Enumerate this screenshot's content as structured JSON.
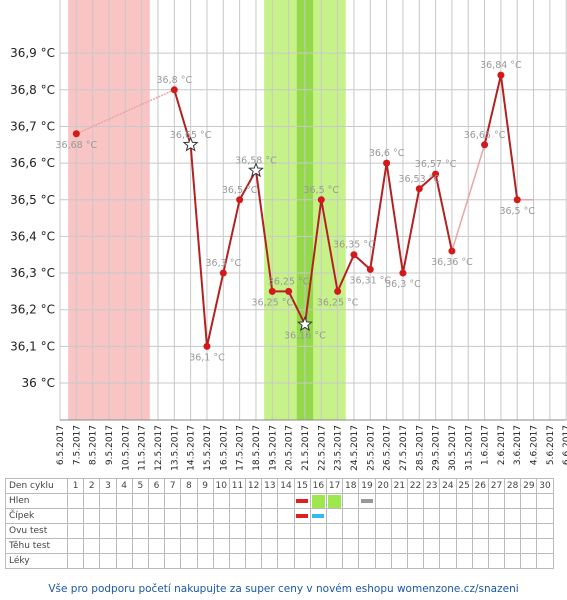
{
  "chart_data": {
    "type": "line",
    "ylabel_ticks": [
      "36 °C",
      "36,1 °C",
      "36,2 °C",
      "36,3 °C",
      "36,4 °C",
      "36,5 °C",
      "36,6 °C",
      "36,7 °C",
      "36,8 °C",
      "36,9 °C"
    ],
    "ylim": [
      35.9,
      37.0
    ],
    "dates": [
      "6.5.2017",
      "7.5.2017",
      "8.5.2017",
      "9.5.2017",
      "10.5.2017",
      "11.5.2017",
      "12.5.2017",
      "13.5.2017",
      "14.5.2017",
      "15.5.2017",
      "16.5.2017",
      "17.5.2017",
      "18.5.2017",
      "19.5.2017",
      "20.5.2017",
      "21.5.2017",
      "22.5.2017",
      "23.5.2017",
      "24.5.2017",
      "25.5.2017",
      "26.5.2017",
      "27.5.2017",
      "28.5.2017",
      "29.5.2017",
      "30.5.2017",
      "31.5.2017",
      "1.6.2017",
      "2.6.2017",
      "3.6.2017",
      "4.6.2017",
      "5.6.2017",
      "6.6.2017"
    ],
    "points": [
      {
        "x": "7.5.2017",
        "y": 36.68,
        "label": "36,68 °C",
        "star": false
      },
      {
        "x": "13.5.2017",
        "y": 36.8,
        "label": "36,8 °C",
        "star": false
      },
      {
        "x": "14.5.2017",
        "y": 36.65,
        "label": "36,65 °C",
        "star": true
      },
      {
        "x": "15.5.2017",
        "y": 36.1,
        "label": "36,1 °C",
        "star": false
      },
      {
        "x": "16.5.2017",
        "y": 36.3,
        "label": "36,3 °C",
        "star": false
      },
      {
        "x": "17.5.2017",
        "y": 36.5,
        "label": "36,5 °C",
        "star": false
      },
      {
        "x": "18.5.2017",
        "y": 36.58,
        "label": "36,58 °C",
        "star": true
      },
      {
        "x": "19.5.2017",
        "y": 36.25,
        "label": "36,25 °C",
        "star": false
      },
      {
        "x": "20.5.2017",
        "y": 36.25,
        "label": "36,25 °C",
        "star": false
      },
      {
        "x": "21.5.2017",
        "y": 36.16,
        "label": "36,16 °C",
        "star": true
      },
      {
        "x": "22.5.2017",
        "y": 36.5,
        "label": "36,5 °C",
        "star": false
      },
      {
        "x": "23.5.2017",
        "y": 36.25,
        "label": "36,25 °C",
        "star": false
      },
      {
        "x": "24.5.2017",
        "y": 36.35,
        "label": "36,35 °C",
        "star": false
      },
      {
        "x": "25.5.2017",
        "y": 36.31,
        "label": "36,31 °C",
        "star": false
      },
      {
        "x": "26.5.2017",
        "y": 36.6,
        "label": "36,6 °C",
        "star": false
      },
      {
        "x": "27.5.2017",
        "y": 36.3,
        "label": "36,3 °C",
        "star": false
      },
      {
        "x": "28.5.2017",
        "y": 36.53,
        "label": "36,53 °C",
        "star": false
      },
      {
        "x": "29.5.2017",
        "y": 36.57,
        "label": "36,57 °C",
        "star": false
      },
      {
        "x": "30.5.2017",
        "y": 36.36,
        "label": "36,36 °C",
        "star": false
      },
      {
        "x": "1.6.2017",
        "y": 36.65,
        "label": "36,65 °C",
        "star": false
      },
      {
        "x": "2.6.2017",
        "y": 36.84,
        "label": "36,84 °C",
        "star": false
      },
      {
        "x": "3.6.2017",
        "y": 36.5,
        "label": "36,5 °C",
        "star": false
      }
    ],
    "bands": [
      {
        "from": "6.5.2017",
        "to": "11.5.2017",
        "color": "#f9c4c4"
      },
      {
        "from": "18.5.2017",
        "to": "23.5.2017",
        "color": "#c7f28a"
      },
      {
        "from": "20.5.2017",
        "to": "21.5.2017",
        "color": "#93d94a"
      }
    ],
    "colors": {
      "line": "#b22222",
      "dot": "#d21a1a",
      "grid": "#c8c8c8",
      "label": "#999999"
    }
  },
  "table": {
    "rows": [
      {
        "label": "Den cyklu"
      },
      {
        "label": "Hlen"
      },
      {
        "label": "Čípek"
      },
      {
        "label": "Ovu test"
      },
      {
        "label": "Těhu test"
      },
      {
        "label": "Léky"
      }
    ],
    "days": [
      "1",
      "2",
      "3",
      "4",
      "5",
      "6",
      "7",
      "8",
      "9",
      "10",
      "11",
      "12",
      "13",
      "14",
      "15",
      "16",
      "17",
      "18",
      "19",
      "20",
      "21",
      "22",
      "23",
      "24",
      "25",
      "26",
      "27",
      "28",
      "29",
      "30"
    ],
    "marks": {
      "hlen": [
        {
          "day": 15,
          "type": "red-bar"
        },
        {
          "day": 16,
          "type": "green-square"
        },
        {
          "day": 17,
          "type": "green-square"
        },
        {
          "day": 19,
          "type": "gray-bar"
        }
      ],
      "cipek": [
        {
          "day": 15,
          "type": "red-bar"
        },
        {
          "day": 16,
          "type": "blue-bar"
        }
      ]
    },
    "mark_colors": {
      "red-bar": "#e02020",
      "green-square": "#9ee84f",
      "gray-bar": "#999999",
      "blue-bar": "#33bbee"
    }
  },
  "footer": "Vše pro podporu početí nakupujte za super ceny v novém eshopu womenzone.cz/snazeni"
}
